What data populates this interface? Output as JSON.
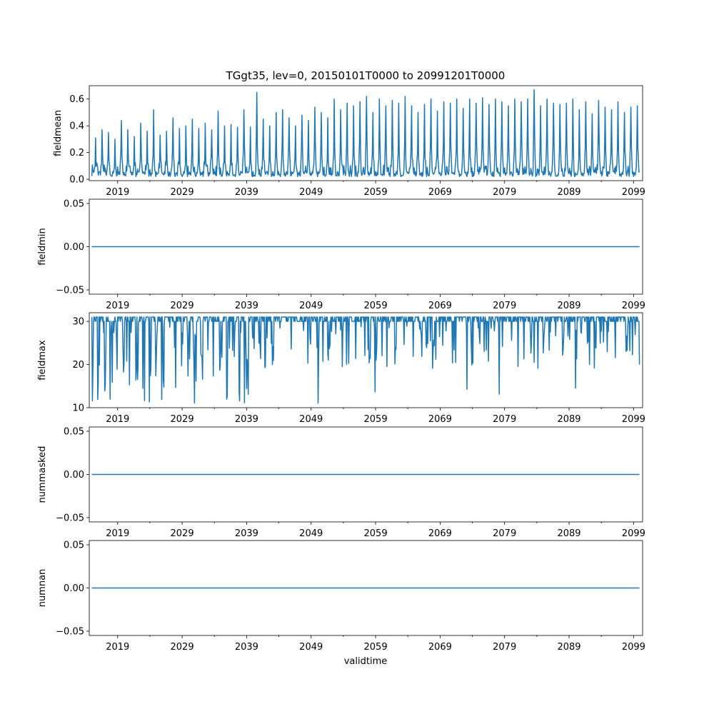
{
  "chart_data": {
    "type": "line",
    "title": "TGgt35, lev=0, 20150101T0000 to 20991201T0000",
    "xlabel": "validtime",
    "x_range": [
      "2015-01",
      "2099-12"
    ],
    "x_major_ticks": [
      2019,
      2029,
      2039,
      2049,
      2059,
      2069,
      2079,
      2089,
      2099
    ],
    "x_tick_labels": [
      "2019",
      "2029",
      "2039",
      "2049",
      "2059",
      "2069",
      "2079",
      "2089",
      "2099"
    ],
    "series_color": "#1f77b4",
    "panels": [
      {
        "name": "fieldmean",
        "ylabel": "fieldmean",
        "ylim": [
          -0.01,
          0.7
        ],
        "yticks": [
          0.0,
          0.2,
          0.4,
          0.6
        ],
        "ytick_labels": [
          "0.0",
          "0.2",
          "0.4",
          "0.6"
        ],
        "model": "seasonal",
        "baseline_range": [
          0.02,
          0.06
        ],
        "peak_range": [
          0.3,
          0.55
        ],
        "yearly_peaks": [
          0.31,
          0.37,
          0.35,
          0.3,
          0.44,
          0.37,
          0.32,
          0.42,
          0.36,
          0.52,
          0.33,
          0.36,
          0.46,
          0.38,
          0.4,
          0.45,
          0.38,
          0.42,
          0.37,
          0.51,
          0.4,
          0.41,
          0.39,
          0.52,
          0.39,
          0.65,
          0.45,
          0.4,
          0.5,
          0.52,
          0.46,
          0.4,
          0.48,
          0.44,
          0.54,
          0.5,
          0.46,
          0.6,
          0.52,
          0.57,
          0.55,
          0.58,
          0.62,
          0.5,
          0.6,
          0.55,
          0.59,
          0.57,
          0.62,
          0.55,
          0.5,
          0.56,
          0.6,
          0.51,
          0.58,
          0.57,
          0.6,
          0.53,
          0.6,
          0.57,
          0.61,
          0.56,
          0.6,
          0.58,
          0.55,
          0.6,
          0.58,
          0.6,
          0.67,
          0.55,
          0.6,
          0.57,
          0.56,
          0.57,
          0.6,
          0.52,
          0.58,
          0.49,
          0.59,
          0.54,
          0.52,
          0.58,
          0.5,
          0.54,
          0.55
        ],
        "final_value": 0.06
      },
      {
        "name": "fieldmin",
        "ylabel": "fieldmin",
        "ylim": [
          -0.055,
          0.055
        ],
        "yticks": [
          -0.05,
          0.0,
          0.05
        ],
        "ytick_labels": [
          "−0.05",
          "0.00",
          "0.05"
        ],
        "model": "constant",
        "value": 0.0
      },
      {
        "name": "fieldmax",
        "ylabel": "fieldmax",
        "ylim": [
          10,
          32
        ],
        "yticks": [
          10,
          20,
          30
        ],
        "ytick_labels": [
          "10",
          "20",
          "30"
        ],
        "model": "capped",
        "cap_values": [
          30,
          31
        ],
        "dip_range": [
          11,
          29
        ],
        "final_value": 20
      },
      {
        "name": "nummasked",
        "ylabel": "nummasked",
        "ylim": [
          -0.055,
          0.055
        ],
        "yticks": [
          -0.05,
          0.0,
          0.05
        ],
        "ytick_labels": [
          "−0.05",
          "0.00",
          "0.05"
        ],
        "model": "constant",
        "value": 0.0
      },
      {
        "name": "numnan",
        "ylabel": "numnan",
        "ylim": [
          -0.055,
          0.055
        ],
        "yticks": [
          -0.05,
          0.0,
          0.05
        ],
        "ytick_labels": [
          "−0.05",
          "0.00",
          "0.05"
        ],
        "model": "constant",
        "value": 0.0
      }
    ]
  }
}
